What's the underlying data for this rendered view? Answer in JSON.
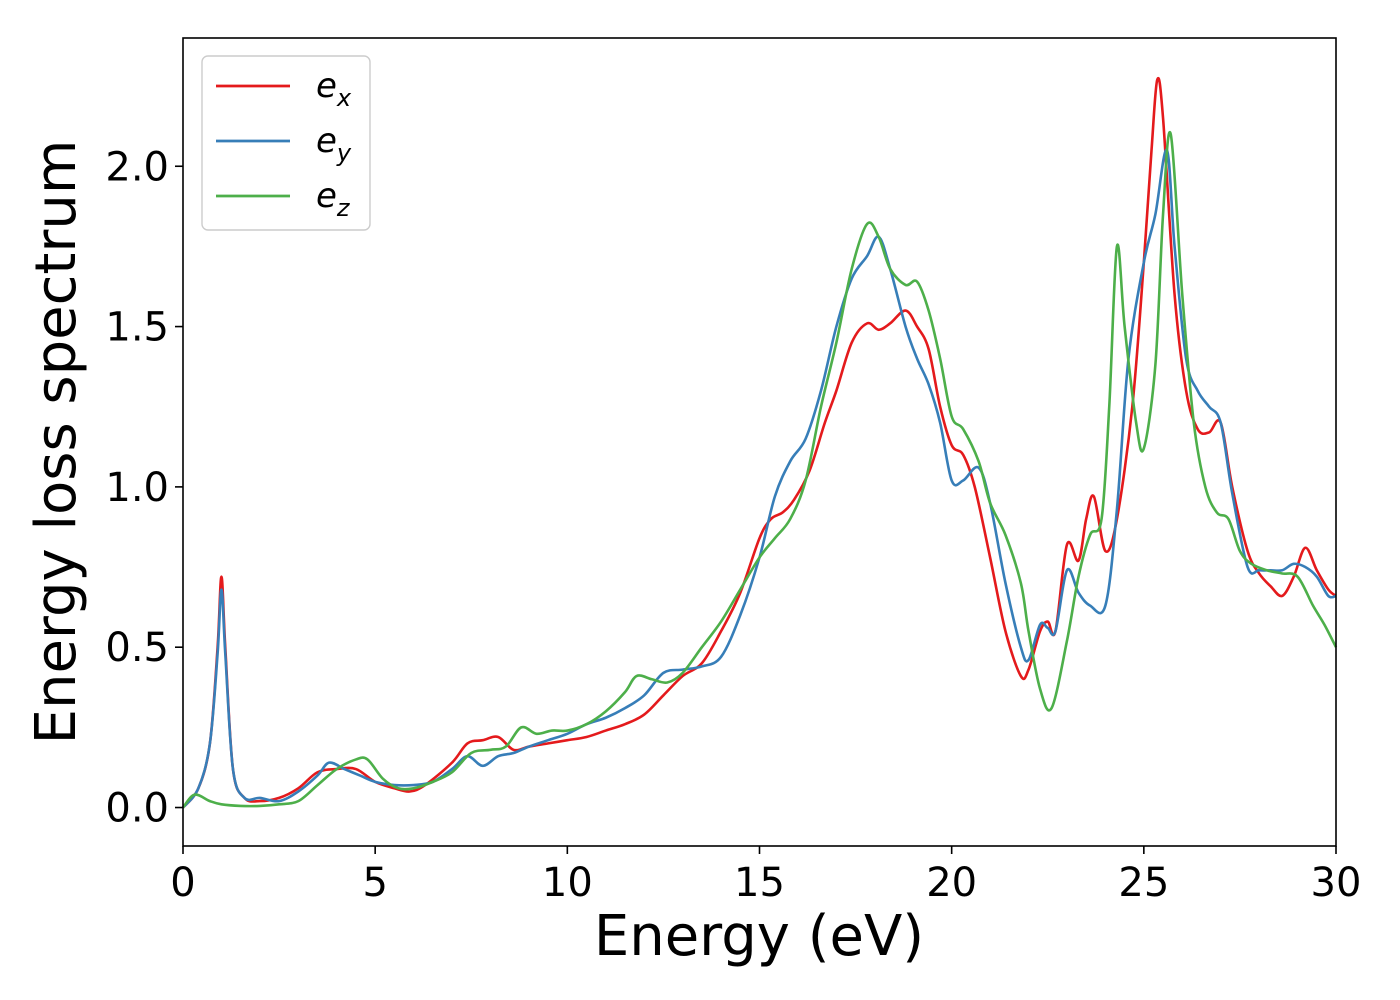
{
  "chart_data": {
    "type": "line",
    "title": "",
    "xlabel": "Energy (eV)",
    "ylabel": "Energy loss spectrum",
    "xlim": [
      0,
      30
    ],
    "ylim": [
      -0.12,
      2.4
    ],
    "xticks": [
      0,
      5,
      10,
      15,
      20,
      25,
      30
    ],
    "xtick_labels": [
      "0",
      "5",
      "10",
      "15",
      "20",
      "25",
      "30"
    ],
    "yticks": [
      0.0,
      0.5,
      1.0,
      1.5,
      2.0
    ],
    "ytick_labels": [
      "0.0",
      "0.5",
      "1.0",
      "1.5",
      "2.0"
    ],
    "grid": false,
    "legend_position": "top-left",
    "series": [
      {
        "name": "e",
        "subscript": "x",
        "color": "#e41a1c",
        "points": [
          [
            0,
            0
          ],
          [
            0.4,
            0.06
          ],
          [
            0.7,
            0.2
          ],
          [
            0.9,
            0.5
          ],
          [
            1.0,
            0.72
          ],
          [
            1.1,
            0.5
          ],
          [
            1.3,
            0.12
          ],
          [
            1.6,
            0.03
          ],
          [
            2.0,
            0.02
          ],
          [
            2.5,
            0.03
          ],
          [
            3.0,
            0.06
          ],
          [
            3.5,
            0.11
          ],
          [
            4.0,
            0.12
          ],
          [
            4.5,
            0.12
          ],
          [
            5.0,
            0.08
          ],
          [
            5.5,
            0.06
          ],
          [
            5.9,
            0.05
          ],
          [
            6.3,
            0.07
          ],
          [
            7.0,
            0.14
          ],
          [
            7.4,
            0.2
          ],
          [
            7.8,
            0.21
          ],
          [
            8.2,
            0.22
          ],
          [
            8.6,
            0.18
          ],
          [
            9.0,
            0.19
          ],
          [
            9.5,
            0.2
          ],
          [
            10.0,
            0.21
          ],
          [
            10.5,
            0.22
          ],
          [
            11.0,
            0.24
          ],
          [
            11.5,
            0.26
          ],
          [
            12.0,
            0.29
          ],
          [
            12.5,
            0.35
          ],
          [
            13.0,
            0.41
          ],
          [
            13.5,
            0.45
          ],
          [
            14.0,
            0.55
          ],
          [
            14.5,
            0.67
          ],
          [
            15.0,
            0.84
          ],
          [
            15.3,
            0.9
          ],
          [
            15.6,
            0.92
          ],
          [
            15.9,
            0.96
          ],
          [
            16.3,
            1.05
          ],
          [
            16.7,
            1.2
          ],
          [
            17.0,
            1.3
          ],
          [
            17.4,
            1.45
          ],
          [
            17.8,
            1.51
          ],
          [
            18.1,
            1.49
          ],
          [
            18.4,
            1.51
          ],
          [
            18.8,
            1.55
          ],
          [
            19.1,
            1.5
          ],
          [
            19.4,
            1.43
          ],
          [
            19.7,
            1.25
          ],
          [
            20.0,
            1.13
          ],
          [
            20.3,
            1.1
          ],
          [
            20.6,
            1.0
          ],
          [
            21.0,
            0.78
          ],
          [
            21.4,
            0.55
          ],
          [
            21.8,
            0.41
          ],
          [
            22.0,
            0.43
          ],
          [
            22.3,
            0.55
          ],
          [
            22.5,
            0.58
          ],
          [
            22.7,
            0.55
          ],
          [
            23.0,
            0.82
          ],
          [
            23.3,
            0.77
          ],
          [
            23.5,
            0.9
          ],
          [
            23.7,
            0.97
          ],
          [
            24.0,
            0.8
          ],
          [
            24.3,
            0.9
          ],
          [
            24.7,
            1.25
          ],
          [
            25.0,
            1.7
          ],
          [
            25.2,
            2.05
          ],
          [
            25.35,
            2.27
          ],
          [
            25.5,
            2.15
          ],
          [
            25.8,
            1.6
          ],
          [
            26.1,
            1.3
          ],
          [
            26.4,
            1.18
          ],
          [
            26.7,
            1.17
          ],
          [
            27.0,
            1.2
          ],
          [
            27.3,
            1.0
          ],
          [
            27.7,
            0.8
          ],
          [
            28.0,
            0.73
          ],
          [
            28.3,
            0.69
          ],
          [
            28.6,
            0.66
          ],
          [
            28.9,
            0.72
          ],
          [
            29.2,
            0.81
          ],
          [
            29.5,
            0.74
          ],
          [
            29.8,
            0.68
          ],
          [
            30.0,
            0.66
          ]
        ]
      },
      {
        "name": "e",
        "subscript": "y",
        "color": "#377eb8",
        "points": [
          [
            0,
            0
          ],
          [
            0.4,
            0.06
          ],
          [
            0.7,
            0.2
          ],
          [
            0.9,
            0.48
          ],
          [
            1.0,
            0.68
          ],
          [
            1.1,
            0.48
          ],
          [
            1.3,
            0.12
          ],
          [
            1.6,
            0.03
          ],
          [
            2.0,
            0.03
          ],
          [
            2.5,
            0.02
          ],
          [
            3.0,
            0.05
          ],
          [
            3.5,
            0.1
          ],
          [
            3.8,
            0.14
          ],
          [
            4.2,
            0.12
          ],
          [
            4.6,
            0.1
          ],
          [
            5.0,
            0.08
          ],
          [
            5.5,
            0.07
          ],
          [
            6.0,
            0.07
          ],
          [
            6.5,
            0.08
          ],
          [
            7.0,
            0.12
          ],
          [
            7.4,
            0.16
          ],
          [
            7.8,
            0.13
          ],
          [
            8.2,
            0.16
          ],
          [
            8.6,
            0.17
          ],
          [
            9.0,
            0.19
          ],
          [
            9.5,
            0.21
          ],
          [
            10.0,
            0.23
          ],
          [
            10.5,
            0.26
          ],
          [
            11.0,
            0.28
          ],
          [
            11.5,
            0.31
          ],
          [
            12.0,
            0.35
          ],
          [
            12.5,
            0.42
          ],
          [
            13.0,
            0.43
          ],
          [
            13.5,
            0.44
          ],
          [
            14.0,
            0.47
          ],
          [
            14.5,
            0.6
          ],
          [
            15.0,
            0.78
          ],
          [
            15.4,
            0.97
          ],
          [
            15.8,
            1.08
          ],
          [
            16.2,
            1.15
          ],
          [
            16.6,
            1.3
          ],
          [
            17.0,
            1.5
          ],
          [
            17.4,
            1.65
          ],
          [
            17.8,
            1.72
          ],
          [
            18.1,
            1.78
          ],
          [
            18.4,
            1.68
          ],
          [
            18.8,
            1.5
          ],
          [
            19.1,
            1.4
          ],
          [
            19.4,
            1.32
          ],
          [
            19.7,
            1.2
          ],
          [
            20.0,
            1.02
          ],
          [
            20.3,
            1.02
          ],
          [
            20.7,
            1.06
          ],
          [
            21.0,
            0.95
          ],
          [
            21.4,
            0.7
          ],
          [
            21.8,
            0.5
          ],
          [
            22.0,
            0.46
          ],
          [
            22.3,
            0.57
          ],
          [
            22.5,
            0.56
          ],
          [
            22.7,
            0.55
          ],
          [
            23.0,
            0.74
          ],
          [
            23.3,
            0.67
          ],
          [
            23.6,
            0.63
          ],
          [
            24.0,
            0.63
          ],
          [
            24.3,
            0.93
          ],
          [
            24.6,
            1.4
          ],
          [
            25.0,
            1.7
          ],
          [
            25.3,
            1.85
          ],
          [
            25.6,
            2.05
          ],
          [
            25.8,
            1.75
          ],
          [
            26.1,
            1.4
          ],
          [
            26.4,
            1.3
          ],
          [
            26.7,
            1.25
          ],
          [
            27.0,
            1.2
          ],
          [
            27.3,
            0.98
          ],
          [
            27.7,
            0.75
          ],
          [
            28.0,
            0.74
          ],
          [
            28.3,
            0.74
          ],
          [
            28.6,
            0.74
          ],
          [
            28.9,
            0.76
          ],
          [
            29.2,
            0.75
          ],
          [
            29.5,
            0.72
          ],
          [
            29.8,
            0.66
          ],
          [
            30.0,
            0.66
          ]
        ]
      },
      {
        "name": "e",
        "subscript": "z",
        "color": "#4daf4a",
        "points": [
          [
            0,
            0
          ],
          [
            0.3,
            0.04
          ],
          [
            0.7,
            0.02
          ],
          [
            1.0,
            0.01
          ],
          [
            1.5,
            0.005
          ],
          [
            2.0,
            0.005
          ],
          [
            2.5,
            0.01
          ],
          [
            3.0,
            0.02
          ],
          [
            3.5,
            0.07
          ],
          [
            4.0,
            0.12
          ],
          [
            4.5,
            0.15
          ],
          [
            4.8,
            0.15
          ],
          [
            5.2,
            0.09
          ],
          [
            5.6,
            0.06
          ],
          [
            6.0,
            0.06
          ],
          [
            6.5,
            0.08
          ],
          [
            7.0,
            0.11
          ],
          [
            7.5,
            0.17
          ],
          [
            8.0,
            0.18
          ],
          [
            8.4,
            0.19
          ],
          [
            8.8,
            0.25
          ],
          [
            9.2,
            0.23
          ],
          [
            9.6,
            0.24
          ],
          [
            10.0,
            0.24
          ],
          [
            10.5,
            0.26
          ],
          [
            11.0,
            0.3
          ],
          [
            11.5,
            0.36
          ],
          [
            11.8,
            0.41
          ],
          [
            12.2,
            0.4
          ],
          [
            12.6,
            0.39
          ],
          [
            13.0,
            0.42
          ],
          [
            13.5,
            0.5
          ],
          [
            14.0,
            0.58
          ],
          [
            14.5,
            0.68
          ],
          [
            15.0,
            0.78
          ],
          [
            15.4,
            0.84
          ],
          [
            15.8,
            0.9
          ],
          [
            16.2,
            1.02
          ],
          [
            16.6,
            1.25
          ],
          [
            17.0,
            1.45
          ],
          [
            17.4,
            1.68
          ],
          [
            17.8,
            1.82
          ],
          [
            18.1,
            1.78
          ],
          [
            18.4,
            1.68
          ],
          [
            18.8,
            1.63
          ],
          [
            19.1,
            1.64
          ],
          [
            19.4,
            1.55
          ],
          [
            19.7,
            1.4
          ],
          [
            20.0,
            1.22
          ],
          [
            20.3,
            1.18
          ],
          [
            20.7,
            1.08
          ],
          [
            21.0,
            0.95
          ],
          [
            21.4,
            0.85
          ],
          [
            21.8,
            0.7
          ],
          [
            22.0,
            0.55
          ],
          [
            22.3,
            0.37
          ],
          [
            22.6,
            0.31
          ],
          [
            23.0,
            0.52
          ],
          [
            23.3,
            0.72
          ],
          [
            23.6,
            0.85
          ],
          [
            23.9,
            0.9
          ],
          [
            24.1,
            1.25
          ],
          [
            24.3,
            1.75
          ],
          [
            24.5,
            1.5
          ],
          [
            24.8,
            1.2
          ],
          [
            25.0,
            1.12
          ],
          [
            25.3,
            1.38
          ],
          [
            25.5,
            1.85
          ],
          [
            25.7,
            2.1
          ],
          [
            26.0,
            1.6
          ],
          [
            26.3,
            1.2
          ],
          [
            26.6,
            1.0
          ],
          [
            26.9,
            0.92
          ],
          [
            27.2,
            0.9
          ],
          [
            27.5,
            0.8
          ],
          [
            27.8,
            0.76
          ],
          [
            28.2,
            0.74
          ],
          [
            28.6,
            0.73
          ],
          [
            29.0,
            0.72
          ],
          [
            29.4,
            0.63
          ],
          [
            29.7,
            0.57
          ],
          [
            30.0,
            0.5
          ]
        ]
      }
    ]
  }
}
